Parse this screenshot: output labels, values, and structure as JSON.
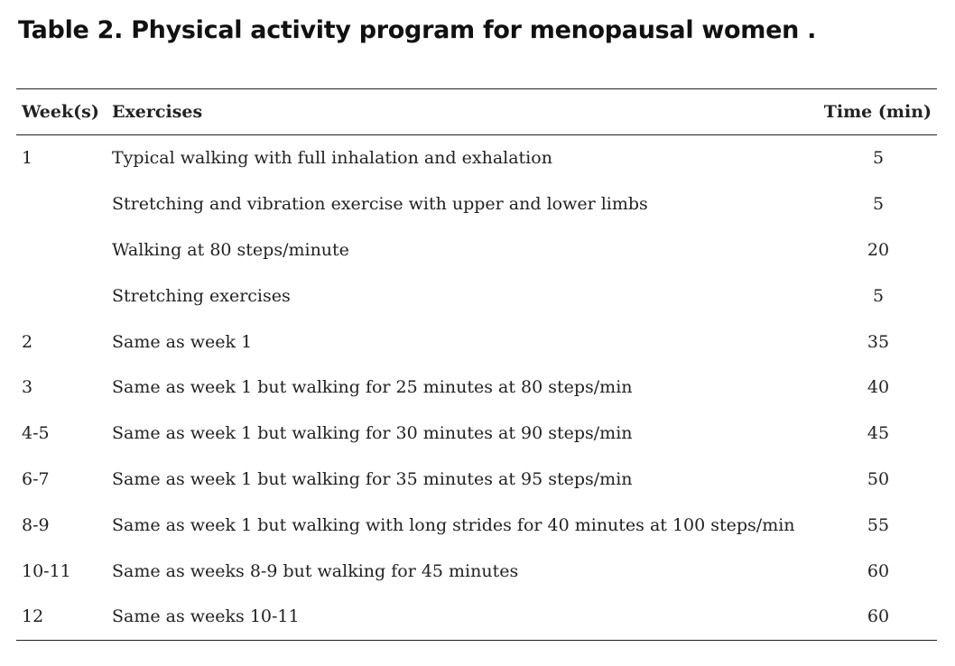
{
  "title": "Table 2. Physical activity program for menopausal women .",
  "table": {
    "headers": {
      "week": "Week(s)",
      "exercises": "Exercises",
      "time": "Time (min)"
    },
    "rows": [
      {
        "week": "1",
        "exercise": "Typical walking with full inhalation and exhalation",
        "time": "5"
      },
      {
        "week": "",
        "exercise": "Stretching and vibration exercise with upper and lower limbs",
        "time": "5"
      },
      {
        "week": "",
        "exercise": "Walking at 80 steps/minute",
        "time": "20"
      },
      {
        "week": "",
        "exercise": "Stretching exercises",
        "time": "5"
      },
      {
        "week": "2",
        "exercise": "Same as week 1",
        "time": "35"
      },
      {
        "week": "3",
        "exercise": "Same as week 1 but walking for 25 minutes at 80 steps/min",
        "time": "40"
      },
      {
        "week": "4-5",
        "exercise": "Same as week 1 but walking for 30 minutes at 90 steps/min",
        "time": "45"
      },
      {
        "week": "6-7",
        "exercise": "Same as week 1 but walking for 35 minutes at 95 steps/min",
        "time": "50"
      },
      {
        "week": "8-9",
        "exercise": "Same as week 1 but walking with long strides for 40 minutes at 100 steps/min",
        "time": "55"
      },
      {
        "week": "10-11",
        "exercise": "Same as weeks 8-9 but walking for 45 minutes",
        "time": "60"
      },
      {
        "week": "12",
        "exercise": "Same as weeks 10-11",
        "time": "60"
      }
    ]
  }
}
